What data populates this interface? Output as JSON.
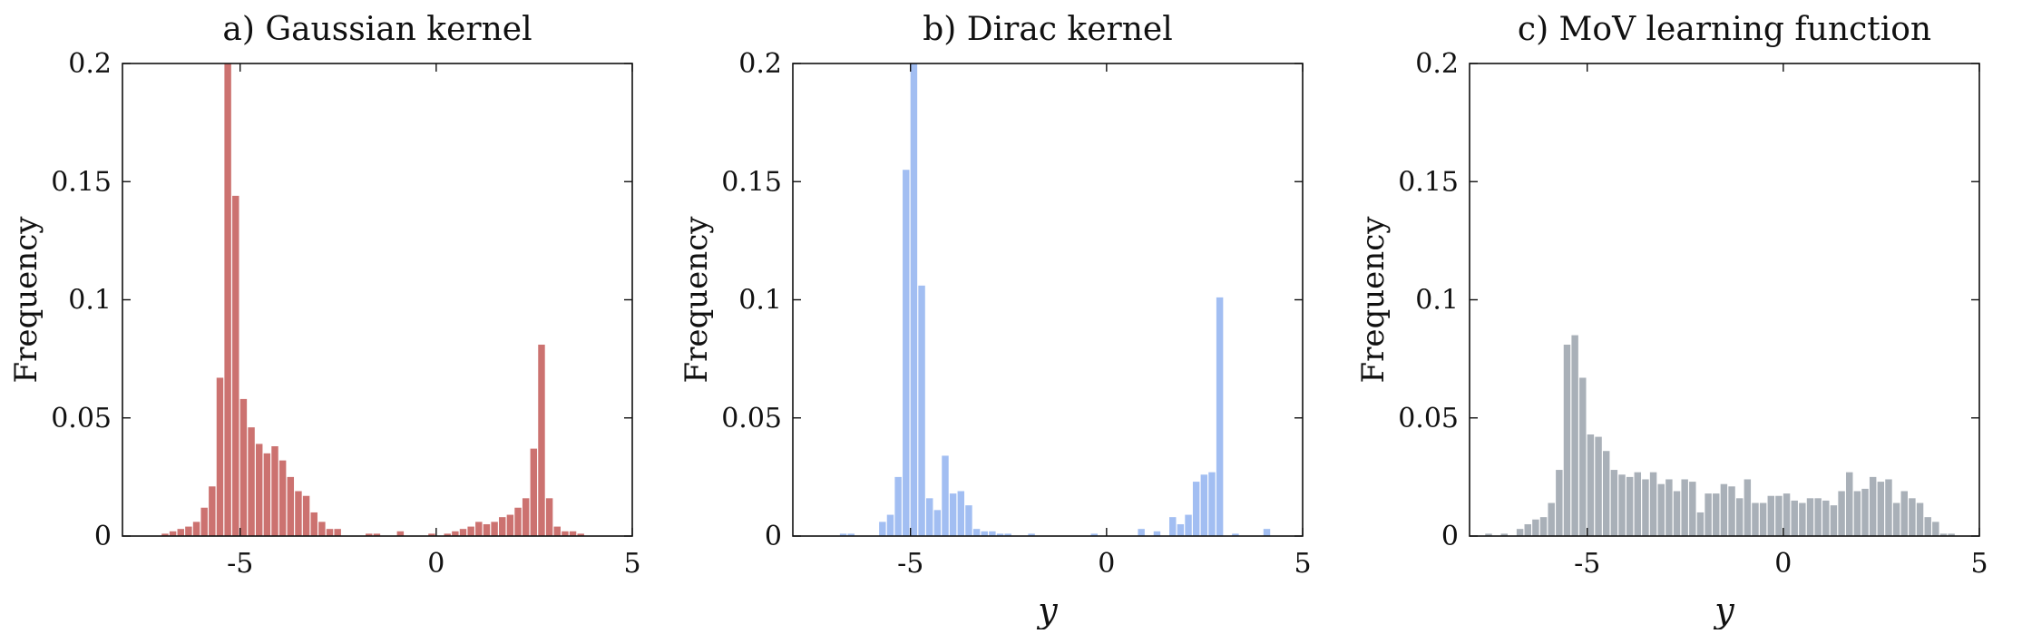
{
  "chart_data": [
    {
      "type": "bar",
      "panel": "a",
      "title": "a) Gaussian kernel",
      "xlabel": "",
      "ylabel": "Frequency",
      "xlim": [
        -8,
        5
      ],
      "ylim": [
        0,
        0.2
      ],
      "xticks": [
        "-5",
        "0",
        "5"
      ],
      "yticks": [
        "0",
        "0.05",
        "0.1",
        "0.15",
        "0.2"
      ],
      "grid": false,
      "bar_color": "#cc7270",
      "bin_width": 0.2,
      "x": [
        -6.9,
        -6.7,
        -6.5,
        -6.3,
        -6.1,
        -5.9,
        -5.7,
        -5.5,
        -5.3,
        -5.1,
        -4.9,
        -4.7,
        -4.5,
        -4.3,
        -4.1,
        -3.9,
        -3.7,
        -3.5,
        -3.3,
        -3.1,
        -2.9,
        -2.7,
        -2.5,
        -1.7,
        -1.5,
        -0.9,
        -0.1,
        0.3,
        0.5,
        0.7,
        0.9,
        1.1,
        1.3,
        1.5,
        1.7,
        1.9,
        2.1,
        2.3,
        2.5,
        2.7,
        2.9,
        3.1,
        3.3,
        3.5,
        3.7
      ],
      "values": [
        0.001,
        0.002,
        0.003,
        0.004,
        0.006,
        0.012,
        0.021,
        0.067,
        0.2,
        0.144,
        0.058,
        0.046,
        0.039,
        0.035,
        0.038,
        0.032,
        0.025,
        0.019,
        0.017,
        0.01,
        0.006,
        0.003,
        0.003,
        0.001,
        0.001,
        0.002,
        0.001,
        0.001,
        0.002,
        0.003,
        0.004,
        0.006,
        0.005,
        0.006,
        0.008,
        0.009,
        0.012,
        0.016,
        0.037,
        0.081,
        0.016,
        0.004,
        0.002,
        0.002,
        0.001
      ]
    },
    {
      "type": "bar",
      "panel": "b",
      "title": "b) Dirac kernel",
      "xlabel": "y",
      "ylabel": "Frequency",
      "xlim": [
        -8,
        5
      ],
      "ylim": [
        0,
        0.2
      ],
      "xticks": [
        "-5",
        "0",
        "5"
      ],
      "yticks": [
        "0",
        "0.05",
        "0.1",
        "0.15",
        "0.2"
      ],
      "grid": false,
      "bar_color": "#a2bef2",
      "bin_width": 0.2,
      "x": [
        -6.7,
        -6.5,
        -5.7,
        -5.5,
        -5.3,
        -5.1,
        -4.9,
        -4.7,
        -4.5,
        -4.3,
        -4.1,
        -3.9,
        -3.7,
        -3.5,
        -3.3,
        -3.1,
        -2.9,
        -2.7,
        -2.5,
        -1.9,
        -0.3,
        0.9,
        1.3,
        1.7,
        1.9,
        2.1,
        2.3,
        2.5,
        2.7,
        2.9,
        3.3,
        4.1
      ],
      "values": [
        0.001,
        0.001,
        0.006,
        0.009,
        0.025,
        0.155,
        0.2,
        0.106,
        0.016,
        0.011,
        0.034,
        0.018,
        0.019,
        0.013,
        0.003,
        0.002,
        0.002,
        0.001,
        0.001,
        0.001,
        0.001,
        0.003,
        0.002,
        0.008,
        0.005,
        0.009,
        0.023,
        0.026,
        0.027,
        0.101,
        0.001,
        0.003
      ]
    },
    {
      "type": "bar",
      "panel": "c",
      "title": "c) MoV learning function",
      "xlabel": "y",
      "ylabel": "Frequency",
      "xlim": [
        -8,
        5
      ],
      "ylim": [
        0,
        0.2
      ],
      "xticks": [
        "-5",
        "0",
        "5"
      ],
      "yticks": [
        "0",
        "0.05",
        "0.1",
        "0.15",
        "0.2"
      ],
      "grid": false,
      "bar_color": "#a9b0b8",
      "bin_width": 0.2,
      "x": [
        -7.5,
        -7.1,
        -6.7,
        -6.5,
        -6.3,
        -6.1,
        -5.9,
        -5.7,
        -5.5,
        -5.3,
        -5.1,
        -4.9,
        -4.7,
        -4.5,
        -4.3,
        -4.1,
        -3.9,
        -3.7,
        -3.5,
        -3.3,
        -3.1,
        -2.9,
        -2.7,
        -2.5,
        -2.3,
        -2.1,
        -1.9,
        -1.7,
        -1.5,
        -1.3,
        -1.1,
        -0.9,
        -0.7,
        -0.5,
        -0.3,
        -0.1,
        0.1,
        0.3,
        0.5,
        0.7,
        0.9,
        1.1,
        1.3,
        1.5,
        1.7,
        1.9,
        2.1,
        2.3,
        2.5,
        2.7,
        2.9,
        3.1,
        3.3,
        3.5,
        3.7,
        3.9,
        4.1,
        4.3
      ],
      "values": [
        0.001,
        0.001,
        0.003,
        0.005,
        0.007,
        0.008,
        0.014,
        0.028,
        0.081,
        0.085,
        0.067,
        0.043,
        0.042,
        0.036,
        0.028,
        0.026,
        0.025,
        0.027,
        0.024,
        0.027,
        0.022,
        0.024,
        0.019,
        0.024,
        0.023,
        0.01,
        0.018,
        0.018,
        0.022,
        0.021,
        0.016,
        0.024,
        0.014,
        0.014,
        0.017,
        0.017,
        0.018,
        0.015,
        0.014,
        0.016,
        0.016,
        0.015,
        0.013,
        0.019,
        0.027,
        0.019,
        0.02,
        0.025,
        0.023,
        0.024,
        0.014,
        0.019,
        0.016,
        0.014,
        0.008,
        0.006,
        0.001,
        0.001
      ]
    }
  ]
}
